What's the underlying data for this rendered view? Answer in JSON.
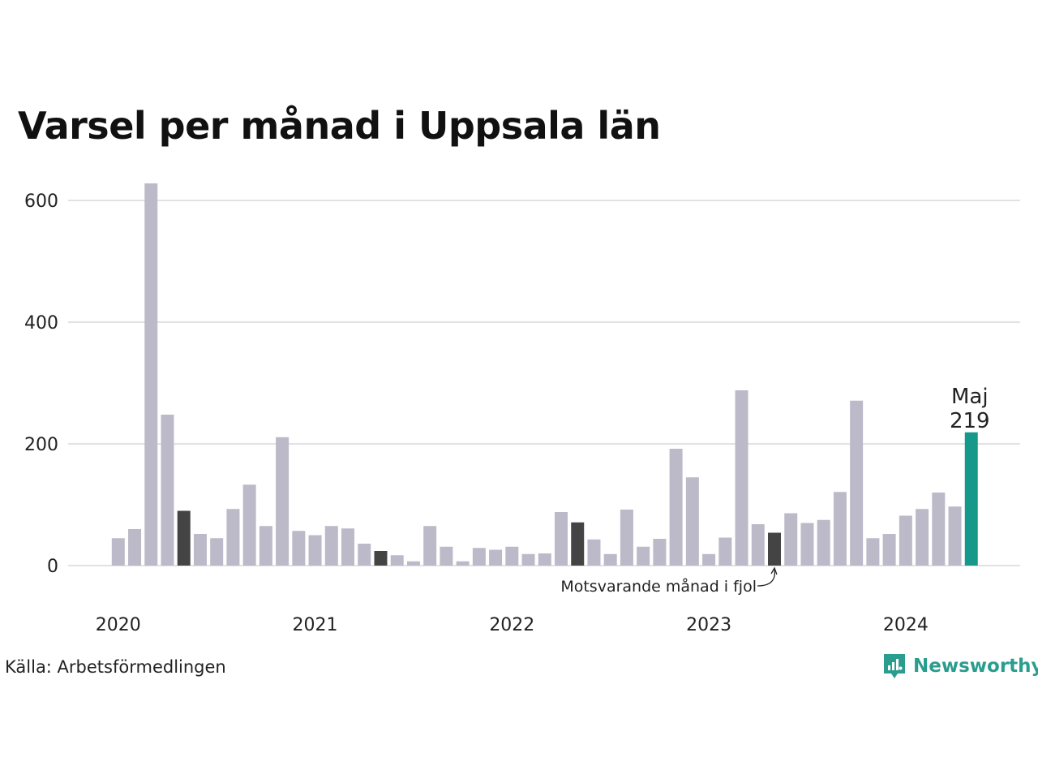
{
  "title": "Varsel per månad i Uppsala län",
  "source": "Källa: Arbetsförmedlingen",
  "brand": "Newsworthy",
  "colors": {
    "bar": "#bcbac9",
    "same_month": "#444444",
    "highlight": "#16998a",
    "grid": "#e2e2e6",
    "brand": "#2a9d8f"
  },
  "chart_data": {
    "type": "bar",
    "title": "Varsel per månad i Uppsala län",
    "xlabel": "",
    "ylabel": "",
    "ylim": [
      0,
      650
    ],
    "y_ticks": [
      "0",
      "200",
      "400",
      "600"
    ],
    "x_tick_labels": [
      "2020",
      "2021",
      "2022",
      "2023",
      "2024"
    ],
    "categories": [
      "2020-01",
      "2020-02",
      "2020-03",
      "2020-04",
      "2020-05",
      "2020-06",
      "2020-07",
      "2020-08",
      "2020-09",
      "2020-10",
      "2020-11",
      "2020-12",
      "2021-01",
      "2021-02",
      "2021-03",
      "2021-04",
      "2021-05",
      "2021-06",
      "2021-07",
      "2021-08",
      "2021-09",
      "2021-10",
      "2021-11",
      "2021-12",
      "2022-01",
      "2022-02",
      "2022-03",
      "2022-04",
      "2022-05",
      "2022-06",
      "2022-07",
      "2022-08",
      "2022-09",
      "2022-10",
      "2022-11",
      "2022-12",
      "2023-01",
      "2023-02",
      "2023-03",
      "2023-04",
      "2023-05",
      "2023-06",
      "2023-07",
      "2023-08",
      "2023-09",
      "2023-10",
      "2023-11",
      "2023-12",
      "2024-01",
      "2024-02",
      "2024-03",
      "2024-04",
      "2024-05"
    ],
    "values": [
      45,
      60,
      628,
      248,
      90,
      52,
      45,
      93,
      133,
      65,
      211,
      57,
      50,
      65,
      61,
      36,
      24,
      17,
      7,
      65,
      31,
      7,
      29,
      26,
      31,
      19,
      20,
      88,
      71,
      43,
      19,
      92,
      31,
      44,
      192,
      145,
      19,
      46,
      288,
      68,
      54,
      86,
      70,
      75,
      121,
      271,
      45,
      52,
      82,
      93,
      120,
      97,
      219
    ],
    "same_month_previous_years": [
      "2020-05",
      "2021-05",
      "2022-05",
      "2023-05"
    ],
    "highlight": {
      "category": "2024-05",
      "label": "Maj",
      "value_label": "219"
    },
    "annotation": "Motsvarande månad i fjol",
    "grid": true
  }
}
